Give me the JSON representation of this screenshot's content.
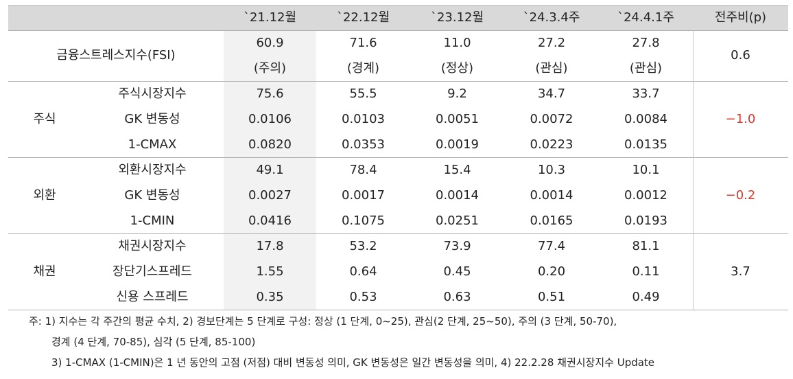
{
  "header": {
    "cols": [
      "`21.12월",
      "`22.12월",
      "`23.12월",
      "`24.3.4주",
      "`24.4.1주",
      "전주비(p)"
    ]
  },
  "fsi": {
    "label": "금융스트레스지수(FSI)",
    "values": [
      "60.9",
      "71.6",
      "11.0",
      "27.2",
      "27.8"
    ],
    "stages": [
      "(주의)",
      "(경계)",
      "(정상)",
      "(관심)",
      "(관심)"
    ],
    "change": "0.6"
  },
  "groups": [
    {
      "name": "주식",
      "change": "-1.0",
      "rows": [
        {
          "label": "주식시장지수",
          "values": [
            "75.6",
            "55.5",
            "9.2",
            "34.7",
            "33.7"
          ]
        },
        {
          "label": "GK 변동성",
          "values": [
            "0.0106",
            "0.0103",
            "0.0051",
            "0.0072",
            "0.0084"
          ]
        },
        {
          "label": "1-CMAX",
          "values": [
            "0.0820",
            "0.0353",
            "0.0019",
            "0.0223",
            "0.0135"
          ]
        }
      ]
    },
    {
      "name": "외환",
      "change": "-0.2",
      "rows": [
        {
          "label": "외환시장지수",
          "values": [
            "49.1",
            "78.4",
            "15.4",
            "10.3",
            "10.1"
          ]
        },
        {
          "label": "GK 변동성",
          "values": [
            "0.0027",
            "0.0017",
            "0.0014",
            "0.0014",
            "0.0012"
          ]
        },
        {
          "label": "1-CMIN",
          "values": [
            "0.0416",
            "0.1075",
            "0.0251",
            "0.0165",
            "0.0193"
          ]
        }
      ]
    },
    {
      "name": "채권",
      "change": "3.7",
      "rows": [
        {
          "label": "채권시장지수",
          "values": [
            "17.8",
            "53.2",
            "73.9",
            "77.4",
            "81.1"
          ]
        },
        {
          "label": "장단기스프레드",
          "values": [
            "1.55",
            "0.64",
            "0.45",
            "0.20",
            "0.11"
          ]
        },
        {
          "label": "신용 스프레드",
          "values": [
            "0.35",
            "0.53",
            "0.63",
            "0.51",
            "0.49"
          ]
        }
      ]
    }
  ],
  "notes": [
    "주: 1) 지수는 각 주간의 평균 수치, 2) 경보단계는 5 단계로 구성: 정상 (1 단계, 0~25), 관심(2 단계, 25~50), 주의 (3 단계, 50-70),",
    "경계 (4 단계, 70-85), 심각 (5 단계, 85-100)",
    "3) 1-CMAX (1-CMIN)은 1 년 동안의 고점 (저점) 대비 변동성 의미, GK 변동성은 일간 변동성을 의미, 4) 22.2.28 채권시장지수 Update"
  ],
  "colors": {
    "header_band": "#d9d9d9",
    "first_col_shade": "#f2f2f2",
    "negative": "#e0352b"
  }
}
